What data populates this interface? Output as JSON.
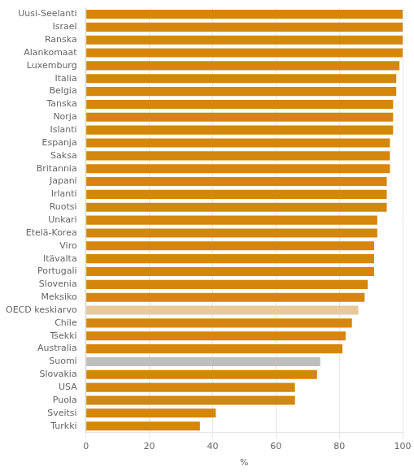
{
  "chart_data": {
    "type": "bar",
    "orientation": "horizontal",
    "categories": [
      "Uusi-Seelanti",
      "Israel",
      "Ranska",
      "Alankomaat",
      "Luxemburg",
      "Italia",
      "Belgia",
      "Tanska",
      "Norja",
      "Islanti",
      "Espanja",
      "Saksa",
      "Britannia",
      "Japani",
      "Irlanti",
      "Ruotsi",
      "Unkari",
      "Etelä-Korea",
      "Viro",
      "Itävalta",
      "Portugali",
      "Slovenia",
      "Meksiko",
      "OECD keskiarvo",
      "Chile",
      "Tšekki",
      "Australia",
      "Suomi",
      "Slovakia",
      "USA",
      "Puola",
      "Sveitsi",
      "Turkki"
    ],
    "values": [
      100,
      100,
      100,
      100,
      99,
      98,
      98,
      97,
      97,
      97,
      96,
      96,
      96,
      95,
      95,
      95,
      92,
      92,
      91,
      91,
      91,
      89,
      88,
      86,
      84,
      82,
      81,
      74,
      73,
      66,
      66,
      41,
      36
    ],
    "colors": [
      "#D4870C",
      "#D4870C",
      "#D4870C",
      "#D4870C",
      "#D4870C",
      "#D4870C",
      "#D4870C",
      "#D4870C",
      "#D4870C",
      "#D4870C",
      "#D4870C",
      "#D4870C",
      "#D4870C",
      "#D4870C",
      "#D4870C",
      "#D4870C",
      "#D4870C",
      "#D4870C",
      "#D4870C",
      "#D4870C",
      "#D4870C",
      "#D4870C",
      "#D4870C",
      "#E8C99A",
      "#D4870C",
      "#D4870C",
      "#D4870C",
      "#BEBEBE",
      "#D4870C",
      "#D4870C",
      "#D4870C",
      "#D4870C",
      "#D4870C"
    ],
    "xlabel": "%",
    "xlim": [
      0,
      100
    ],
    "xticks": [
      0,
      20,
      40,
      60,
      80,
      100
    ],
    "grid": true
  }
}
